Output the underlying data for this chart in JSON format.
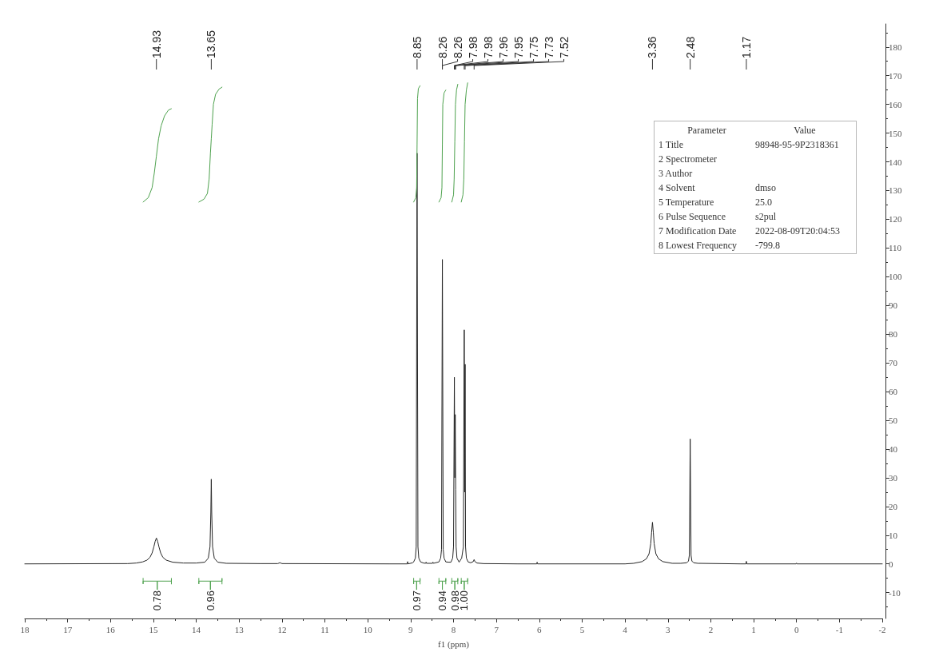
{
  "chart_data": {
    "type": "line",
    "xlabel": "f1 (ppm)",
    "xlim": [
      18,
      -2
    ],
    "xticks": [
      18,
      {
        "value": 17.5,
        "label": null
      },
      17,
      {
        "value": 16.5,
        "label": null
      },
      16,
      {
        "value": 15.5,
        "label": null
      },
      15,
      {
        "value": 14.5,
        "label": null
      },
      14,
      {
        "value": 13.5,
        "label": null
      },
      13,
      {
        "value": 12.5,
        "label": null
      },
      12,
      {
        "value": 11.5,
        "label": null
      },
      11,
      {
        "value": 10.5,
        "label": null
      },
      10,
      {
        "value": 9.5,
        "label": null
      },
      9,
      {
        "value": 8.5,
        "label": null
      },
      8,
      {
        "value": 7.5,
        "label": null
      },
      7,
      {
        "value": 6.5,
        "label": null
      },
      6,
      {
        "value": 5.5,
        "label": null
      },
      5,
      {
        "value": 4.5,
        "label": null
      },
      4,
      {
        "value": 3.5,
        "label": null
      },
      3,
      {
        "value": 2.5,
        "label": null
      },
      2,
      {
        "value": 1.5,
        "label": null
      },
      1,
      {
        "value": 0.5,
        "label": null
      },
      0,
      {
        "value": -0.5,
        "label": null
      },
      -1,
      {
        "value": -1.5,
        "label": null
      },
      -2
    ],
    "ylim": [
      -19,
      188
    ],
    "yticks": [
      {
        "value": -15,
        "label": null
      },
      -10,
      {
        "value": -5,
        "label": null
      },
      0,
      {
        "value": 5,
        "label": null
      },
      10,
      {
        "value": 15,
        "label": null
      },
      20,
      {
        "value": 25,
        "label": null
      },
      30,
      {
        "value": 35,
        "label": null
      },
      40,
      {
        "value": 45,
        "label": null
      },
      50,
      {
        "value": 55,
        "label": null
      },
      60,
      {
        "value": 65,
        "label": null
      },
      70,
      {
        "value": 75,
        "label": null
      },
      80,
      {
        "value": 85,
        "label": null
      },
      90,
      {
        "value": 95,
        "label": null
      },
      100,
      {
        "value": 105,
        "label": null
      },
      110,
      {
        "value": 115,
        "label": null
      },
      120,
      {
        "value": 125,
        "label": null
      },
      130,
      {
        "value": 135,
        "label": null
      },
      140,
      {
        "value": 145,
        "label": null
      },
      150,
      {
        "value": 155,
        "label": null
      },
      160,
      {
        "value": 165,
        "label": null
      },
      170,
      {
        "value": 175,
        "label": null
      },
      180,
      {
        "value": 185,
        "label": null
      }
    ],
    "marker": "none",
    "series": [
      {
        "color": "#262626",
        "x": [
          18,
          15.6,
          15.4,
          15.25,
          15.15,
          15.08,
          15.03,
          14.99,
          14.96,
          14.93,
          14.9,
          14.87,
          14.83,
          14.78,
          14.7,
          14.55,
          14.3,
          14,
          13.8,
          13.72,
          13.68,
          13.66,
          13.65,
          13.64,
          13.62,
          13.58,
          13.5,
          13.3,
          12.5,
          12.1,
          12.05,
          12,
          9.5,
          9.08,
          9.07,
          9.06,
          8.95,
          8.93,
          8.89,
          8.87,
          8.85,
          8.83,
          8.81,
          8.77,
          8.7,
          8.65,
          8.64,
          8.63,
          8.49,
          8.48,
          8.47,
          8.34,
          8.3,
          8.28,
          8.26,
          8.24,
          8.22,
          8.18,
          8.12,
          8.06,
          8.02,
          8,
          7.98,
          7.97,
          7.96,
          7.95,
          7.94,
          7.92,
          7.87,
          7.81,
          7.77,
          7.75,
          7.74,
          7.73,
          7.72,
          7.7,
          7.66,
          7.6,
          7.54,
          7.52,
          7.5,
          7.45,
          7.3,
          6.5,
          6.06,
          6.05,
          6.04,
          4,
          3.8,
          3.6,
          3.5,
          3.44,
          3.4,
          3.38,
          3.36,
          3.34,
          3.32,
          3.28,
          3.22,
          3.12,
          2.9,
          2.7,
          2.56,
          2.52,
          2.5,
          2.48,
          2.46,
          2.44,
          2.4,
          2.3,
          1.3,
          1.18,
          1.17,
          1.16,
          0.01,
          0,
          -0.01,
          -2
        ],
        "values": [
          0,
          0.1,
          0.3,
          0.7,
          1.3,
          2.3,
          3.8,
          5.9,
          7.8,
          9,
          7.8,
          5.9,
          3.8,
          2.3,
          1.3,
          0.6,
          0.3,
          0.3,
          0.6,
          2,
          6,
          18,
          29.5,
          18,
          6,
          2,
          0.6,
          0.2,
          0.1,
          0.1,
          0.4,
          0.1,
          0,
          0,
          0.8,
          0,
          0.4,
          0.7,
          2,
          6,
          143,
          6,
          2,
          0.7,
          0.3,
          0.2,
          0.6,
          0.2,
          0.2,
          0.6,
          0.2,
          0.7,
          2,
          5,
          106,
          5,
          2,
          0.7,
          0.6,
          0.6,
          2,
          6,
          65,
          30,
          52,
          26,
          6,
          2,
          0.6,
          2,
          6,
          81.5,
          25,
          69.5,
          6,
          2,
          0.7,
          0.4,
          0.8,
          1.5,
          0.8,
          0.3,
          0.1,
          0,
          0,
          0.6,
          0,
          0,
          0.2,
          0.8,
          1.8,
          3.5,
          7,
          11,
          14.5,
          11,
          7,
          3.5,
          1.8,
          0.8,
          0.2,
          0.2,
          0.4,
          1,
          3,
          43.5,
          3,
          1,
          0.4,
          0.2,
          0,
          0,
          0.9,
          0,
          0,
          0.3,
          0,
          0
        ]
      },
      {
        "color": "#4ea24e",
        "x": [
          15.24,
          15.12,
          15.03,
          14.98,
          14.93,
          14.88,
          14.82,
          14.74,
          14.65,
          14.58
        ],
        "values": [
          126,
          127.5,
          131,
          136,
          142,
          148,
          152.5,
          156,
          158,
          158.5
        ]
      },
      {
        "color": "#4ea24e",
        "x": [
          13.94,
          13.82,
          13.74,
          13.7,
          13.67,
          13.65,
          13.63,
          13.6,
          13.55,
          13.47,
          13.4
        ],
        "values": [
          126,
          127,
          129,
          134,
          143,
          148,
          153,
          160,
          163.5,
          165.3,
          166
        ]
      },
      {
        "color": "#4ea24e",
        "x": [
          8.93,
          8.88,
          8.86,
          8.85,
          8.84,
          8.82,
          8.78
        ],
        "values": [
          126,
          127.5,
          131,
          146,
          162,
          165.5,
          166.5
        ]
      },
      {
        "color": "#4ea24e",
        "x": [
          8.34,
          8.29,
          8.27,
          8.26,
          8.25,
          8.22,
          8.18
        ],
        "values": [
          126,
          127.5,
          131,
          146,
          160,
          164,
          165
        ]
      },
      {
        "color": "#4ea24e",
        "x": [
          8.04,
          8,
          7.985,
          7.97,
          7.955,
          7.93,
          7.9
        ],
        "values": [
          126,
          128.5,
          134,
          147,
          160,
          165,
          167
        ]
      },
      {
        "color": "#4ea24e",
        "x": [
          7.82,
          7.78,
          7.76,
          7.745,
          7.73,
          7.7,
          7.67
        ],
        "values": [
          126,
          128.5,
          134,
          147,
          160,
          165,
          167.5
        ]
      },
      {
        "color": "#4ea24e",
        "x": [
          15.24,
          15.24,
          15.24,
          14.91,
          14.91,
          14.91,
          14.58,
          14.58,
          14.58
        ],
        "values": [
          -5,
          -7,
          -6,
          -6,
          -9,
          -6,
          -6,
          -5,
          -7
        ]
      },
      {
        "color": "#4ea24e",
        "x": [
          13.94,
          13.94,
          13.94,
          13.67,
          13.67,
          13.67,
          13.4,
          13.4,
          13.4
        ],
        "values": [
          -5,
          -7,
          -6,
          -6,
          -9,
          -6,
          -6,
          -5,
          -7
        ]
      },
      {
        "color": "#4ea24e",
        "x": [
          8.93,
          8.93,
          8.93,
          8.86,
          8.86,
          8.86,
          8.78,
          8.78,
          8.78
        ],
        "values": [
          -5,
          -7,
          -6,
          -6,
          -9,
          -6,
          -6,
          -5,
          -7
        ]
      },
      {
        "color": "#4ea24e",
        "x": [
          8.34,
          8.34,
          8.34,
          8.26,
          8.26,
          8.26,
          8.18,
          8.18,
          8.18
        ],
        "values": [
          -5,
          -7,
          -6,
          -6,
          -9,
          -6,
          -6,
          -5,
          -7
        ]
      },
      {
        "color": "#4ea24e",
        "x": [
          8.04,
          8.04,
          8.04,
          7.97,
          7.97,
          7.97,
          7.9,
          7.9,
          7.9
        ],
        "values": [
          -5,
          -7,
          -6,
          -6,
          -9,
          -6,
          -6,
          -5,
          -7
        ]
      },
      {
        "color": "#4ea24e",
        "x": [
          7.82,
          7.82,
          7.82,
          7.75,
          7.75,
          7.75,
          7.67,
          7.67,
          7.67
        ],
        "values": [
          -5,
          -7,
          -6,
          -6,
          -9,
          -6,
          -6,
          -5,
          -7
        ]
      }
    ],
    "annotations": [
      "Parameter",
      "Value",
      "1 Title",
      "98948-95-9P2318361",
      "2 Spectrometer",
      null,
      "3 Author",
      null,
      "4 Solvent",
      "dmso",
      "5 Temperature",
      "25.0",
      "6 Pulse Sequence",
      "s2pul",
      "7 Modification Date",
      "2022-08-09T20:04:53",
      "8 Lowest Frequency",
      "-799.8",
      {
        "text": "14.93",
        "x": 14.93
      },
      {
        "text": "13.65",
        "x": 13.65
      },
      {
        "text": "8.85",
        "x": 8.85
      },
      {
        "text": "8.26",
        "x": 8.26
      },
      {
        "text": "8.26",
        "x": 8.26
      },
      {
        "text": "7.98",
        "x": 7.98
      },
      {
        "text": "7.98",
        "x": 7.98
      },
      {
        "text": "7.96",
        "x": 7.96
      },
      {
        "text": "7.95",
        "x": 7.95
      },
      {
        "text": "7.75",
        "x": 7.75
      },
      {
        "text": "7.73",
        "x": 7.73
      },
      {
        "text": "7.52",
        "x": 7.52
      },
      {
        "text": "3.36",
        "x": 3.36
      },
      {
        "text": "2.48",
        "x": 2.48
      },
      {
        "text": "1.17",
        "x": 1.17
      },
      {
        "text": "0.78",
        "x": 14.91,
        "y": -9
      },
      {
        "text": "0.96",
        "x": 13.67,
        "y": -9
      },
      {
        "text": "0.97",
        "x": 8.86,
        "y": -9
      },
      {
        "text": "0.94",
        "x": 8.26,
        "y": -9
      },
      {
        "text": "0.98",
        "x": 7.97,
        "y": -9
      },
      {
        "text": "1.00",
        "x": 7.75,
        "y": -9
      }
    ]
  }
}
